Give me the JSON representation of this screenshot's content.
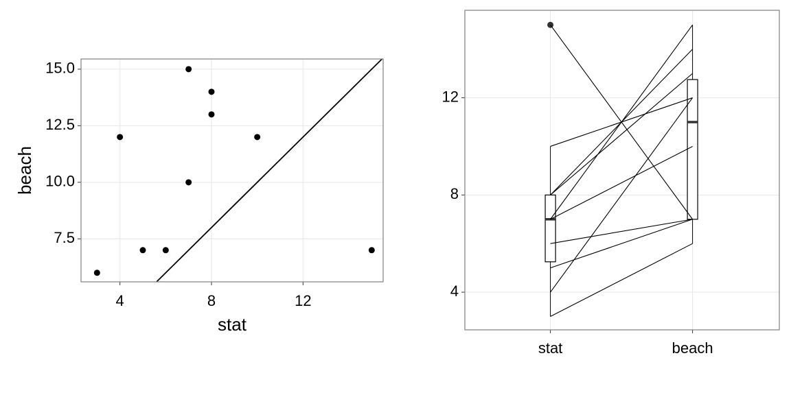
{
  "chart_data": [
    {
      "type": "scatter",
      "xlabel": "stat",
      "ylabel": "beach",
      "x": [
        3,
        4,
        5,
        6,
        7,
        7,
        8,
        8,
        10,
        15
      ],
      "y": [
        6,
        12,
        7,
        7,
        15,
        10,
        14,
        13,
        12,
        7
      ],
      "xlim": [
        2.3,
        15.5
      ],
      "ylim": [
        5.6,
        15.45
      ],
      "xticks": [
        4,
        8,
        12
      ],
      "yticks": [
        7.5,
        {
          "value": 10,
          "label": "10.0"
        },
        12.5,
        {
          "value": 15,
          "label": "15.0"
        }
      ],
      "diagonal": true,
      "grid": true,
      "color": "#000000"
    },
    {
      "type": "box",
      "categories": [
        "stat",
        "beach"
      ],
      "series": [
        {
          "values": [
            3,
            4,
            5,
            6,
            7,
            7,
            8,
            8,
            10,
            15
          ]
        },
        {
          "values": [
            6,
            12,
            7,
            7,
            15,
            10,
            14,
            13,
            12,
            7
          ]
        }
      ],
      "boxes": [
        {
          "whisker_low": 3,
          "q1": 5.25,
          "median": 7,
          "q3": 8,
          "whisker_high": 10,
          "outliers": [
            15
          ]
        },
        {
          "whisker_low": 6,
          "q1": 7,
          "median": 11,
          "q3": 12.75,
          "whisker_high": 15,
          "outliers": []
        }
      ],
      "ylim": [
        2.45,
        15.6
      ],
      "yticks": [
        4,
        8,
        12
      ],
      "grid": true,
      "color": "#000000"
    }
  ]
}
